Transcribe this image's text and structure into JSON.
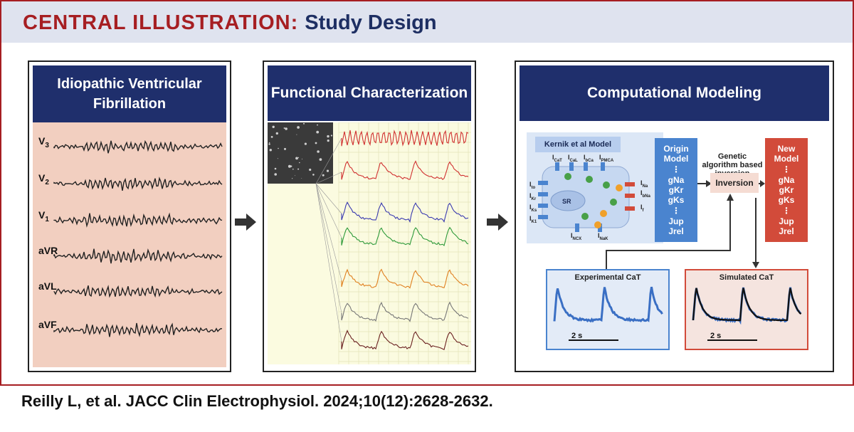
{
  "header": {
    "label": "CENTRAL ILLUSTRATION:",
    "title": "Study Design"
  },
  "panels": {
    "ivf": {
      "title_line1": "Idiopathic Ventricular",
      "title_line2": "Fibrillation",
      "leads": [
        "V3",
        "V2",
        "V1",
        "aVR",
        "aVL",
        "aVF"
      ]
    },
    "functional": {
      "title": "Functional Characterization"
    },
    "modeling": {
      "title": "Computational Modeling",
      "model_title": "Kernik et al Model",
      "sr_label": "SR",
      "origin_model": {
        "line1": "Origin",
        "line2": "Model",
        "params_top": [
          "gNa",
          "gKr",
          "gKs"
        ],
        "params_bottom": [
          "Jup",
          "Jrel"
        ]
      },
      "new_model": {
        "line1": "New",
        "line2": "Model",
        "params_top": [
          "gNa",
          "gKr",
          "gKs"
        ],
        "params_bottom": [
          "Jup",
          "Jrel"
        ]
      },
      "ga_label": "Genetic algorithm based inversion",
      "inversion_label": "Inversion",
      "experimental": {
        "title": "Experimental CaT",
        "scale": "2 s"
      },
      "simulated": {
        "title": "Simulated CaT",
        "scale": "2 s"
      }
    }
  },
  "citation": "Reilly L, et al. JACC Clin Electrophysiol. 2024;10(12):2628-2632.",
  "colors": {
    "brand_red": "#a61e22",
    "navy": "#1f2f6c",
    "header_bg": "#dfe3ef",
    "ecg_bg": "#f2cfc0",
    "origin_blue": "#4a84cf",
    "new_red": "#d24b3a"
  }
}
